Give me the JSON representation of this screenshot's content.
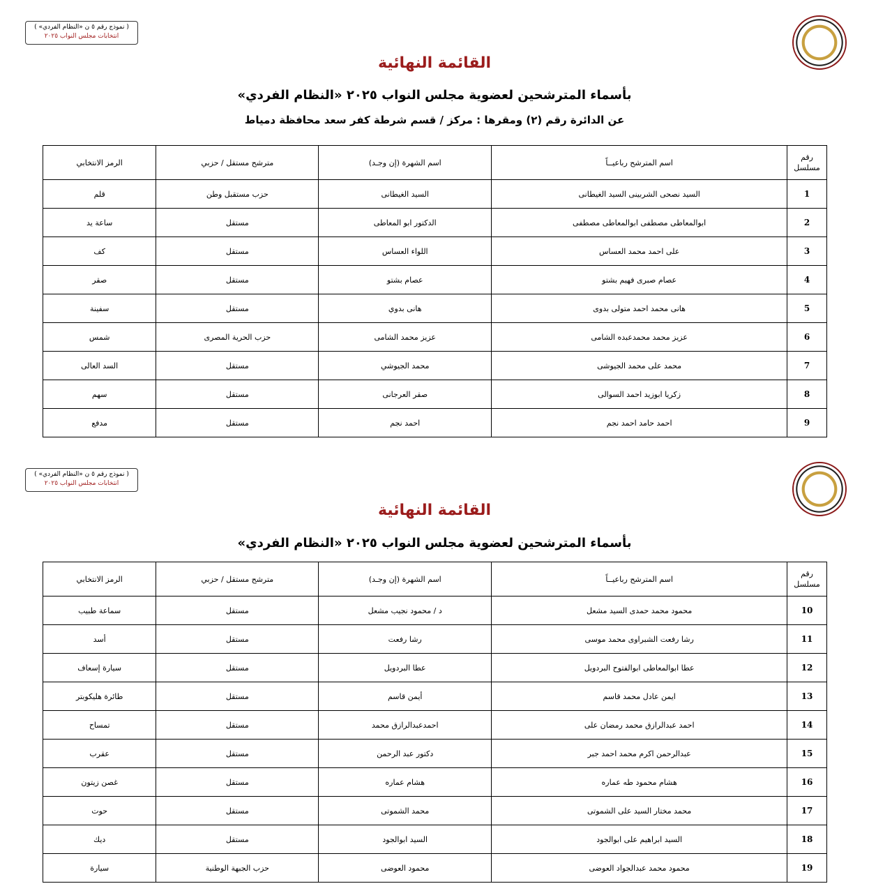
{
  "pages": [
    {
      "form_label": [
        "( نموذج رقم ٥ ن «النظام الفردي» )",
        "انتخابات مجلس النواب ٢٠٢٥"
      ],
      "title": "القائمة النهائية",
      "subtitle": "بأسماء المترشحين لعضوية مجلس النواب ٢٠٢٥ «النظام الفردي»",
      "district": "عن الدائرة رقم  (٢)   ومقرها : مركز / قسم شرطة  كفر سعد    محافظة  دمياط",
      "headers": [
        "رقم مسلسل",
        "اسم المترشح رباعيــاً",
        "اسم الشهرة (إن وجـد)",
        "مترشح مستقل / حزبي",
        "الرمز الانتخابي"
      ],
      "rows": [
        [
          "1",
          "السيد نصحى الشربينى السيد الغيطانى",
          "السيد الغيطانى",
          "حزب مستقبل وطن",
          "قلم"
        ],
        [
          "2",
          "ابوالمعاطى مصطفى ابوالمعاطى مصطفى",
          "الدكتور ابو المعاطى",
          "مستقل",
          "ساعة يد"
        ],
        [
          "3",
          "على احمد محمد العساس",
          "اللواء العساس",
          "مستقل",
          "كف"
        ],
        [
          "4",
          "عصام صبرى فهيم بشتو",
          "عصام بشتو",
          "مستقل",
          "صقر"
        ],
        [
          "5",
          "هانى محمد احمد متولى بدوى",
          "هانى بدوي",
          "مستقل",
          "سفينة"
        ],
        [
          "6",
          "عزيز محمد محمدعبده الشامى",
          "عزيز محمد الشامى",
          "حزب الحرية المصرى",
          "شمس"
        ],
        [
          "7",
          "محمد على محمد الجيوشى",
          "محمد الجيوشي",
          "مستقل",
          "السد العالى"
        ],
        [
          "8",
          "زكريا ابوزيد احمد السوالى",
          "صقر العرجانى",
          "مستقل",
          "سهم"
        ],
        [
          "9",
          "احمد حامد احمد نجم",
          "احمد نجم",
          "مستقل",
          "مدفع"
        ]
      ]
    },
    {
      "form_label": [
        "( نموذج رقم ٥ ن «النظام الفردي» )",
        "انتخابات مجلس النواب ٢٠٢٥"
      ],
      "title": "القائمة النهائية",
      "subtitle": "بأسماء المترشحين لعضوية مجلس النواب ٢٠٢٥ «النظام الفردي»",
      "headers": [
        "رقم مسلسل",
        "اسم المترشح رباعيــاً",
        "اسم الشهرة (إن وجـد)",
        "مترشح مستقل / حزبي",
        "الرمز الانتخابي"
      ],
      "rows": [
        [
          "10",
          "محمود محمد حمدى السيد مشعل",
          "د / محمود نجيب مشعل",
          "مستقل",
          "سماعة طبيب"
        ],
        [
          "11",
          "رشا رفعت الشبراوى محمد موسى",
          "رشا رفعت",
          "مستقل",
          "أسد"
        ],
        [
          "12",
          "عطا ابوالمعاطى ابوالفتوح البردويل",
          "عطا البردويل",
          "مستقل",
          "سيارة إسعاف"
        ],
        [
          "13",
          "ايمن عادل محمد قاسم",
          "أيمن قاسم",
          "مستقل",
          "طائرة هليكوبتر"
        ],
        [
          "14",
          "احمد عبدالرازق محمد رمضان على",
          "احمدعبدالرازق محمد",
          "مستقل",
          "تمساح"
        ],
        [
          "15",
          "عبدالرحمن اكرم محمد احمد جبر",
          "دكتور عبد الرحمن",
          "مستقل",
          "عقرب"
        ],
        [
          "16",
          "هشام محمود طه عماره",
          "هشام عماره",
          "مستقل",
          "غصن زيتون"
        ],
        [
          "17",
          "محمد مختار السيد على الشموتى",
          "محمد الشموتى",
          "مستقل",
          "حوت"
        ],
        [
          "18",
          "السيد ابراهيم على ابوالجود",
          "السيد ابوالجود",
          "مستقل",
          "ديك"
        ],
        [
          "19",
          "محمود محمد عبدالجواد العوضى",
          "محمود العوضى",
          "حزب الجبهة الوطنية",
          "سيارة"
        ]
      ]
    }
  ]
}
